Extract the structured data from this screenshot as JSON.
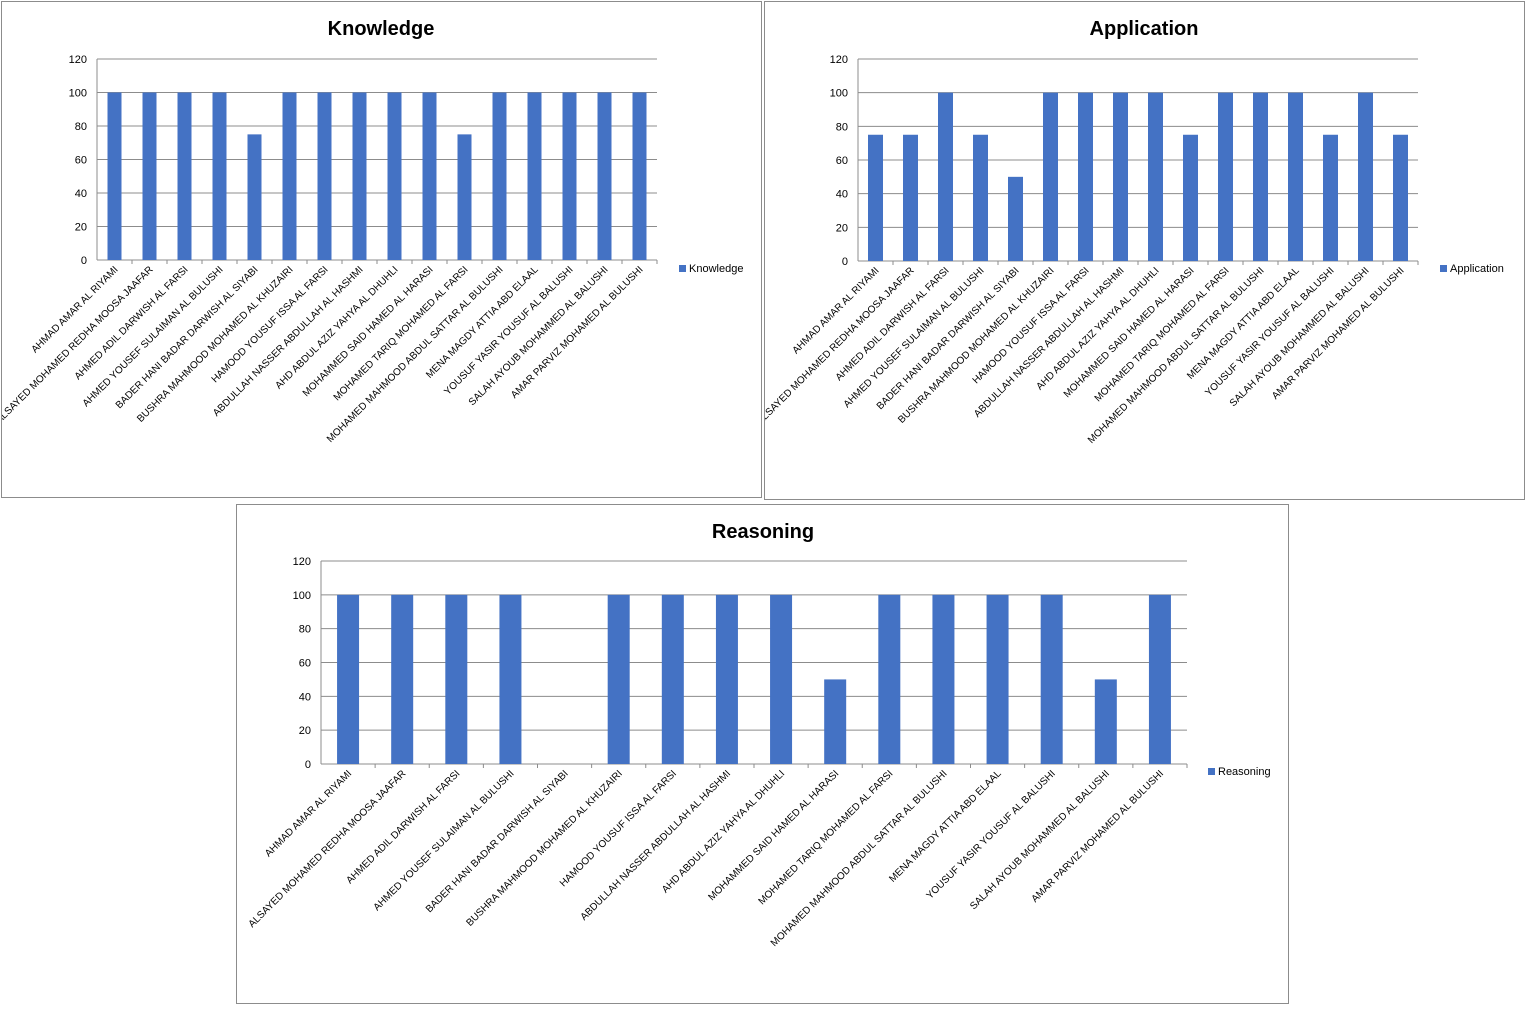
{
  "chart_data": [
    {
      "type": "bar",
      "title": "Knowledge",
      "xlabel": "",
      "ylabel": "",
      "ylim": [
        0,
        120
      ],
      "yticks": [
        0,
        20,
        40,
        60,
        80,
        100,
        120
      ],
      "legend_position": "right",
      "grid": true,
      "categories": [
        "AHMAD AMAR  AL RIYAMI",
        "ALSAYED MOHAMED REDHA MOOSA JAAFAR",
        "AHMED ADIL DARWISH  AL FARSI",
        "AHMED YOUSEF SULAIMAN AL BULUSHI",
        "BADER HANI BADAR DARWISH  AL SIYABI",
        "BUSHRA MAHMOOD MOHAMED AL KHUZAIRI",
        "HAMOOD YOUSUF ISSA AL FARSI",
        "ABDULLAH NASSER ABDULLAH AL HASHMI",
        "AHD ABDUL AZIZ  YAHYA  AL DHUHLI",
        "MOHAMMED SAID HAMED AL HARASI",
        "MOHAMED TARIQ MOHAMED AL FARSI",
        "MOHAMED MAHMOOD ABDUL SATTAR  AL BULUSHI",
        "MENA MAGDY ATTIA  ABD  ELAAL",
        "YOUSUF YASIR YOUSUF AL BALUSHI",
        "SALAH AYOUB MOHAMMED AL BALUSHI",
        "AMAR PARVIZ MOHAMED AL BULUSHI"
      ],
      "series": [
        {
          "name": "Knowledge",
          "color": "#4472C4",
          "values": [
            100,
            100,
            100,
            100,
            75,
            100,
            100,
            100,
            100,
            100,
            75,
            100,
            100,
            100,
            100,
            100
          ]
        }
      ]
    },
    {
      "type": "bar",
      "title": "Application",
      "xlabel": "",
      "ylabel": "",
      "ylim": [
        0,
        120
      ],
      "yticks": [
        0,
        20,
        40,
        60,
        80,
        100,
        120
      ],
      "legend_position": "right",
      "grid": true,
      "categories": [
        "AHMAD AMAR  AL RIYAMI",
        "ALSAYED MOHAMED REDHA MOOSA JAAFAR",
        "AHMED ADIL DARWISH  AL FARSI",
        "AHMED YOUSEF SULAIMAN AL BULUSHI",
        "BADER HANI BADAR DARWISH  AL SIYABI",
        "BUSHRA MAHMOOD MOHAMED AL KHUZAIRI",
        "HAMOOD YOUSUF ISSA AL FARSI",
        "ABDULLAH NASSER ABDULLAH AL HASHMI",
        "AHD ABDUL AZIZ  YAHYA  AL DHUHLI",
        "MOHAMMED SAID HAMED AL HARASI",
        "MOHAMED TARIQ MOHAMED AL FARSI",
        "MOHAMED MAHMOOD ABDUL SATTAR  AL BULUSHI",
        "MENA MAGDY ATTIA  ABD  ELAAL",
        "YOUSUF YASIR YOUSUF AL BALUSHI",
        "SALAH AYOUB MOHAMMED AL BALUSHI",
        "AMAR PARVIZ MOHAMED AL BULUSHI"
      ],
      "series": [
        {
          "name": "Application",
          "color": "#4472C4",
          "values": [
            75,
            75,
            100,
            75,
            50,
            100,
            100,
            100,
            100,
            75,
            100,
            100,
            100,
            75,
            100,
            75
          ]
        }
      ]
    },
    {
      "type": "bar",
      "title": "Reasoning",
      "xlabel": "",
      "ylabel": "",
      "ylim": [
        0,
        120
      ],
      "yticks": [
        0,
        20,
        40,
        60,
        80,
        100,
        120
      ],
      "legend_position": "right",
      "grid": true,
      "categories": [
        "AHMAD AMAR  AL RIYAMI",
        "ALSAYED MOHAMED REDHA MOOSA JAAFAR",
        "AHMED ADIL DARWISH  AL FARSI",
        "AHMED YOUSEF SULAIMAN AL BULUSHI",
        "BADER HANI BADAR DARWISH  AL SIYABI",
        "BUSHRA MAHMOOD MOHAMED AL KHUZAIRI",
        "HAMOOD YOUSUF ISSA AL FARSI",
        "ABDULLAH NASSER ABDULLAH AL HASHMI",
        "AHD ABDUL AZIZ  YAHYA  AL DHUHLI",
        "MOHAMMED SAID HAMED AL HARASI",
        "MOHAMED TARIQ MOHAMED AL FARSI",
        "MOHAMED MAHMOOD ABDUL SATTAR  AL BULUSHI",
        "MENA MAGDY ATTIA  ABD  ELAAL",
        "YOUSUF YASIR YOUSUF AL BALUSHI",
        "SALAH AYOUB MOHAMMED AL BALUSHI",
        "AMAR PARVIZ MOHAMED AL BULUSHI"
      ],
      "series": [
        {
          "name": "Reasoning",
          "color": "#4472C4",
          "values": [
            100,
            100,
            100,
            100,
            0,
            100,
            100,
            100,
            100,
            50,
            100,
            100,
            100,
            100,
            50,
            100
          ]
        }
      ]
    }
  ]
}
